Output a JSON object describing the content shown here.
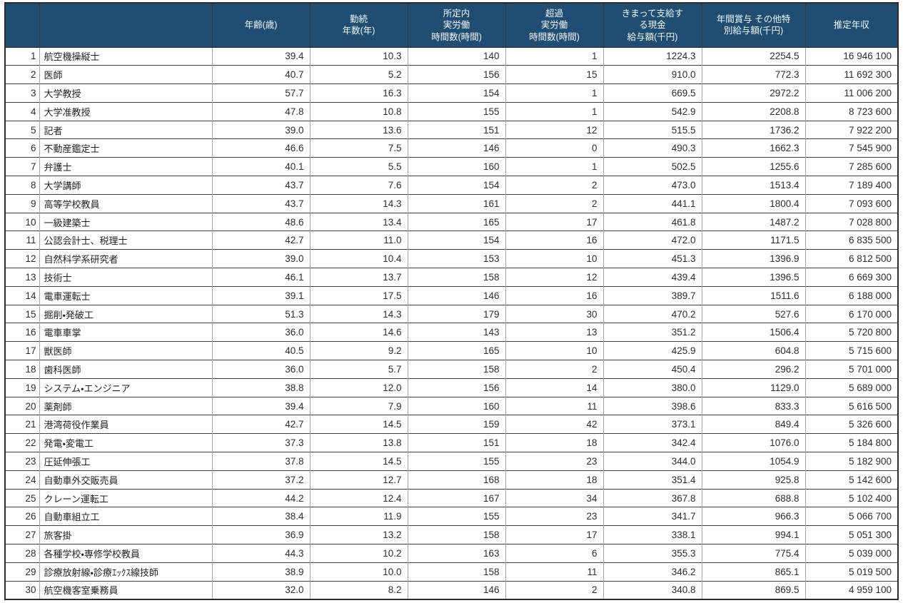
{
  "colors": {
    "header_bg": "#1f4e72",
    "header_text": "#f2f5f8",
    "grid_horizontal": "#404040",
    "grid_vertical": "#a6a6a6",
    "outer_border": "#2b2b2b"
  },
  "table": {
    "columns": [
      {
        "key": "rank",
        "label": ""
      },
      {
        "key": "occupation",
        "label": ""
      },
      {
        "key": "age",
        "label": "年齢(歳)"
      },
      {
        "key": "tenure_years",
        "label": "勤続\n年数(年)"
      },
      {
        "key": "scheduled_hours",
        "label": "所定内\n実労働\n時間数(時間)"
      },
      {
        "key": "overtime_hours",
        "label": "超過\n実労働\n時間数(時間)"
      },
      {
        "key": "monthly_cash_salary",
        "label": "きまって支給す\nる現金\n給与額(千円)"
      },
      {
        "key": "annual_bonus",
        "label": "年間賞与  その他特\n別給与額(千円)"
      },
      {
        "key": "estimated_annual_income",
        "label": "推定年収"
      }
    ],
    "rows": [
      [
        "1",
        "航空機操縦士",
        "39.4",
        "10.3",
        "140",
        "1",
        "1224.3",
        "2254.5",
        "16 946 100"
      ],
      [
        "2",
        "医師",
        "40.7",
        "5.2",
        "156",
        "15",
        "910.0",
        "772.3",
        "11 692 300"
      ],
      [
        "3",
        "大学教授",
        "57.7",
        "16.3",
        "154",
        "1",
        "669.5",
        "2972.2",
        "11 006 200"
      ],
      [
        "4",
        "大学准教授",
        "47.8",
        "10.8",
        "155",
        "1",
        "542.9",
        "2208.8",
        "8 723 600"
      ],
      [
        "5",
        "記者",
        "39.0",
        "13.6",
        "151",
        "12",
        "515.5",
        "1736.2",
        "7 922 200"
      ],
      [
        "6",
        "不動産鑑定士",
        "46.6",
        "7.5",
        "146",
        "0",
        "490.3",
        "1662.3",
        "7 545 900"
      ],
      [
        "7",
        "弁護士",
        "40.1",
        "5.5",
        "160",
        "1",
        "502.5",
        "1255.6",
        "7 285 600"
      ],
      [
        "8",
        "大学講師",
        "43.7",
        "7.6",
        "154",
        "2",
        "473.0",
        "1513.4",
        "7 189 400"
      ],
      [
        "9",
        "高等学校教員",
        "43.7",
        "14.3",
        "161",
        "2",
        "441.1",
        "1800.4",
        "7 093 600"
      ],
      [
        "10",
        "一級建築士",
        "48.6",
        "13.4",
        "165",
        "17",
        "461.8",
        "1487.2",
        "7 028 800"
      ],
      [
        "11",
        "公認会計士、税理士",
        "42.7",
        "11.0",
        "154",
        "16",
        "472.0",
        "1171.5",
        "6 835 500"
      ],
      [
        "12",
        "自然科学系研究者",
        "39.0",
        "10.4",
        "153",
        "10",
        "451.3",
        "1396.9",
        "6 812 500"
      ],
      [
        "13",
        "技術士",
        "46.1",
        "13.7",
        "158",
        "12",
        "439.4",
        "1396.5",
        "6 669 300"
      ],
      [
        "14",
        "電車運転士",
        "39.1",
        "17.5",
        "146",
        "16",
        "389.7",
        "1511.6",
        "6 188 000"
      ],
      [
        "15",
        "掘削・発破工",
        "51.3",
        "14.3",
        "179",
        "30",
        "470.2",
        "527.6",
        "6 170 000"
      ],
      [
        "16",
        "電車車掌",
        "36.0",
        "14.6",
        "143",
        "13",
        "351.2",
        "1506.4",
        "5 720 800"
      ],
      [
        "17",
        "獣医師",
        "40.5",
        "9.2",
        "165",
        "10",
        "425.9",
        "604.8",
        "5 715 600"
      ],
      [
        "18",
        "歯科医師",
        "36.0",
        "5.7",
        "158",
        "2",
        "450.4",
        "296.2",
        "5 701 000"
      ],
      [
        "19",
        "システム・エンジニア",
        "38.8",
        "12.0",
        "156",
        "14",
        "380.0",
        "1129.0",
        "5 689 000"
      ],
      [
        "20",
        "薬剤師",
        "39.4",
        "7.9",
        "160",
        "11",
        "398.6",
        "833.3",
        "5 616 500"
      ],
      [
        "21",
        "港湾荷役作業員",
        "42.7",
        "14.5",
        "159",
        "42",
        "373.1",
        "849.4",
        "5 326 600"
      ],
      [
        "22",
        "発電・変電工",
        "37.3",
        "13.8",
        "151",
        "18",
        "342.4",
        "1076.0",
        "5 184 800"
      ],
      [
        "23",
        "圧延伸張工",
        "37.8",
        "14.5",
        "155",
        "23",
        "344.0",
        "1054.9",
        "5 182 900"
      ],
      [
        "24",
        "自動車外交販売員",
        "37.2",
        "12.7",
        "168",
        "18",
        "351.4",
        "925.8",
        "5 142 600"
      ],
      [
        "25",
        "クレーン運転工",
        "44.2",
        "12.4",
        "167",
        "34",
        "367.8",
        "688.8",
        "5 102 400"
      ],
      [
        "26",
        "自動車組立工",
        "38.4",
        "11.9",
        "155",
        "23",
        "341.7",
        "966.3",
        "5 066 700"
      ],
      [
        "27",
        "旅客掛",
        "36.9",
        "13.2",
        "158",
        "17",
        "338.1",
        "994.1",
        "5 051 300"
      ],
      [
        "28",
        "各種学校・専修学校教員",
        "44.3",
        "10.2",
        "163",
        "6",
        "355.3",
        "775.4",
        "5 039 000"
      ],
      [
        "29",
        "診療放射線・診療ｴｯｸｽ線技師",
        "38.9",
        "10.0",
        "158",
        "11",
        "346.2",
        "865.1",
        "5 019 500"
      ],
      [
        "30",
        "航空機客室乗務員",
        "32.0",
        "8.2",
        "146",
        "2",
        "340.8",
        "869.5",
        "4 959 100"
      ]
    ]
  }
}
